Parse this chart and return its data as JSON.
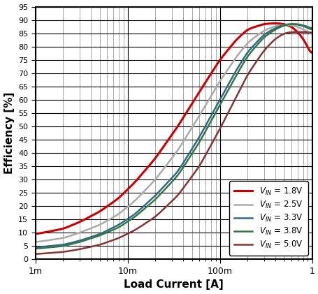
{
  "xlabel": "Load Current [A]",
  "ylabel": "Efficiency [%]",
  "xlim": [
    0.001,
    1.0
  ],
  "ylim": [
    0,
    95
  ],
  "yticks": [
    0,
    5,
    10,
    15,
    20,
    25,
    30,
    35,
    40,
    45,
    50,
    55,
    60,
    65,
    70,
    75,
    80,
    85,
    90,
    95
  ],
  "series": [
    {
      "label": "$V_{IN}$ = 1.8V",
      "color": "#cc0000",
      "linewidth": 2.2,
      "pts_x": [
        0.001,
        0.002,
        0.003,
        0.005,
        0.008,
        0.012,
        0.02,
        0.035,
        0.06,
        0.1,
        0.15,
        0.2,
        0.3,
        0.4,
        0.5,
        0.6,
        0.7,
        0.8,
        0.9,
        1.0
      ],
      "pts_y": [
        9.5,
        11.5,
        14.0,
        18.0,
        23.0,
        29.0,
        38.0,
        50.0,
        63.0,
        75.0,
        82.5,
        86.5,
        88.5,
        88.8,
        88.5,
        87.5,
        85.5,
        83.0,
        80.0,
        75.5
      ]
    },
    {
      "label": "$V_{IN}$ = 2.5V",
      "color": "#aaaaaa",
      "linewidth": 1.8,
      "pts_x": [
        0.001,
        0.002,
        0.003,
        0.005,
        0.008,
        0.012,
        0.02,
        0.035,
        0.06,
        0.1,
        0.15,
        0.2,
        0.3,
        0.4,
        0.5,
        0.6,
        0.7,
        0.8,
        0.9,
        1.0
      ],
      "pts_y": [
        6.5,
        8.0,
        10.0,
        13.0,
        17.0,
        22.0,
        30.0,
        41.0,
        54.0,
        67.0,
        76.0,
        81.5,
        86.0,
        87.8,
        88.2,
        88.0,
        87.5,
        86.5,
        85.5,
        84.0
      ]
    },
    {
      "label": "$V_{IN}$ = 3.3V",
      "color": "#336688",
      "linewidth": 1.8,
      "pts_x": [
        0.001,
        0.002,
        0.003,
        0.005,
        0.008,
        0.012,
        0.02,
        0.035,
        0.06,
        0.1,
        0.15,
        0.2,
        0.3,
        0.4,
        0.5,
        0.6,
        0.7,
        0.8,
        0.9,
        1.0
      ],
      "pts_y": [
        4.5,
        5.5,
        7.0,
        9.5,
        13.0,
        17.0,
        24.0,
        33.0,
        46.0,
        60.0,
        71.0,
        78.0,
        84.5,
        87.0,
        88.3,
        88.5,
        88.3,
        87.8,
        87.0,
        86.0
      ]
    },
    {
      "label": "$V_{IN}$ = 3.8V",
      "color": "#337744",
      "linewidth": 1.8,
      "pts_x": [
        0.001,
        0.002,
        0.003,
        0.005,
        0.008,
        0.012,
        0.02,
        0.035,
        0.06,
        0.1,
        0.15,
        0.2,
        0.3,
        0.4,
        0.5,
        0.6,
        0.7,
        0.8,
        0.9,
        1.0
      ],
      "pts_y": [
        4.0,
        5.0,
        6.5,
        9.0,
        12.0,
        16.0,
        22.5,
        31.5,
        44.0,
        58.0,
        69.0,
        76.5,
        83.5,
        86.5,
        88.0,
        88.5,
        88.5,
        88.0,
        87.5,
        86.5
      ]
    },
    {
      "label": "$V_{IN}$ = 5.0V",
      "color": "#883333",
      "linewidth": 1.8,
      "pts_x": [
        0.001,
        0.002,
        0.003,
        0.005,
        0.008,
        0.012,
        0.02,
        0.035,
        0.06,
        0.1,
        0.15,
        0.2,
        0.3,
        0.4,
        0.5,
        0.6,
        0.7,
        0.8,
        0.9,
        1.0
      ],
      "pts_y": [
        2.0,
        2.8,
        3.8,
        5.5,
        8.0,
        11.0,
        16.0,
        24.0,
        35.0,
        49.0,
        61.0,
        69.5,
        78.5,
        83.0,
        85.0,
        85.5,
        85.5,
        85.5,
        85.5,
        85.0
      ]
    }
  ],
  "background_color": "#ffffff"
}
